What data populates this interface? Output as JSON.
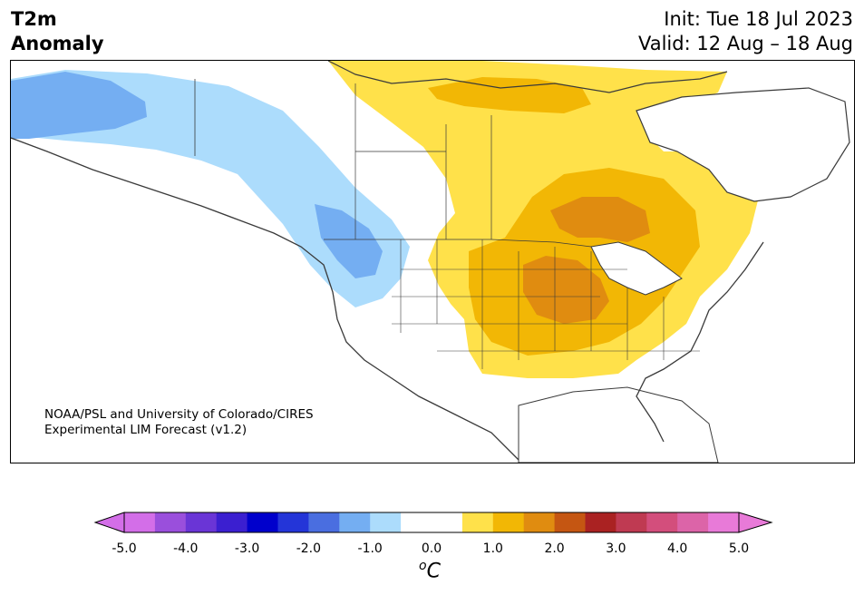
{
  "title": {
    "line1": "T2m",
    "line2": "Anomaly"
  },
  "header_right": {
    "init": "Init: Tue 18 Jul 2023",
    "valid": "Valid: 12 Aug – 18 Aug"
  },
  "credit": {
    "line1": "NOAA/PSL and University of Colorado/CIRES",
    "line2": "Experimental LIM Forecast (v1.2)"
  },
  "colorbar": {
    "unit_superscript": "o",
    "unit": "C",
    "ticks": [
      "-5.0",
      "-4.0",
      "-3.0",
      "-2.0",
      "-1.0",
      "0.0",
      "1.0",
      "2.0",
      "3.0",
      "4.0",
      "5.0"
    ],
    "under_color": "#d36ee8",
    "over_color": "#e87ad8",
    "colors": [
      "#d36ee8",
      "#9a4fdc",
      "#6a35d6",
      "#3b1fd0",
      "#0000cc",
      "#2435d8",
      "#4a6ee0",
      "#74aef2",
      "#acdcfc",
      "#ffffff",
      "#ffffff",
      "#ffe14a",
      "#f2b705",
      "#e08c10",
      "#c55612",
      "#aa2222",
      "#bf3a52",
      "#d34e7c",
      "#dc64a8",
      "#e87ad8"
    ]
  },
  "map_colors": {
    "light_blue": "#acdcfc",
    "mid_blue": "#74aef2",
    "light_yellow": "#ffe14a",
    "gold": "#f2b705",
    "orange": "#e08c10"
  }
}
